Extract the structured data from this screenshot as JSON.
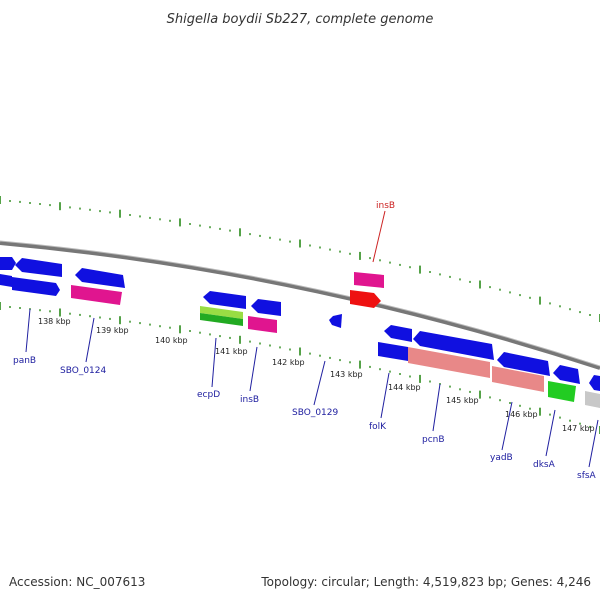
{
  "header": {
    "title": "Shigella boydii Sb227, complete genome"
  },
  "footer": {
    "accession": "Accession: NC_007613",
    "topology": "Topology: circular; Length: 4,519,823 bp; Genes: 4,246"
  },
  "colors": {
    "forward_gene": "#1010e0",
    "transposase": "#e0158f",
    "red_feature": "#ee1111",
    "light_green_feature": "#99dd44",
    "green_feature": "#22aa22",
    "salmon_feature": "#e88888",
    "grey_feature": "#c8c8c8",
    "tick": "#2a8a1a",
    "backbone": "#888888",
    "label_blue": "#2020a0",
    "label_red": "#cc2222"
  },
  "kbp_ticks": [
    "138 kbp",
    "139 kbp",
    "140 kbp",
    "141 kbp",
    "142 kbp",
    "143 kbp",
    "144 kbp",
    "145 kbp",
    "146 kbp",
    "147 kbp"
  ],
  "gene_labels": [
    {
      "name": "panB",
      "color": "blue"
    },
    {
      "name": "SBO_0124",
      "color": "blue"
    },
    {
      "name": "ecpD",
      "color": "blue"
    },
    {
      "name": "insB",
      "color": "blue"
    },
    {
      "name": "SBO_0129",
      "color": "blue"
    },
    {
      "name": "folK",
      "color": "blue"
    },
    {
      "name": "pcnB",
      "color": "blue"
    },
    {
      "name": "yadB",
      "color": "blue"
    },
    {
      "name": "dksA",
      "color": "blue"
    },
    {
      "name": "sfsA",
      "color": "blue"
    },
    {
      "name": "insB",
      "color": "red"
    }
  ]
}
